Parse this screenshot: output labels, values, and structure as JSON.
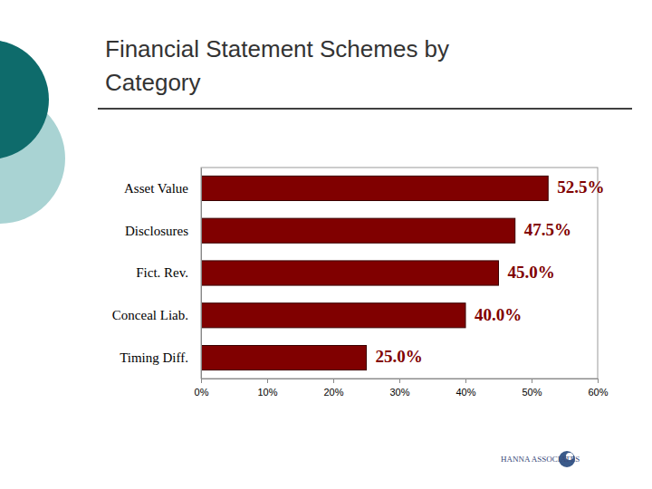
{
  "chart_data": {
    "type": "bar",
    "title": "Financial Statement Schemes by Category",
    "orientation": "horizontal",
    "categories": [
      "Asset Value",
      "Disclosures",
      "Fict. Rev.",
      "Conceal Liab.",
      "Timing Diff."
    ],
    "values": [
      52.5,
      47.5,
      45.0,
      40.0,
      25.0
    ],
    "value_labels": [
      "52.5%",
      "47.5%",
      "45.0%",
      "40.0%",
      "25.0%"
    ],
    "data_labels": true,
    "color": "#800000",
    "xlim": [
      0,
      60
    ],
    "xticks": [
      {
        "value": 0,
        "label": "0%"
      },
      {
        "value": 10,
        "label": "10%"
      },
      {
        "value": 20,
        "label": "20%"
      },
      {
        "value": 30,
        "label": "30%"
      },
      {
        "value": 40,
        "label": "40%"
      },
      {
        "value": 50,
        "label": "50%"
      },
      {
        "value": 60,
        "label": "60%"
      }
    ],
    "grid": false,
    "annotations": [
      "HANNA ASSOCIATES"
    ]
  }
}
